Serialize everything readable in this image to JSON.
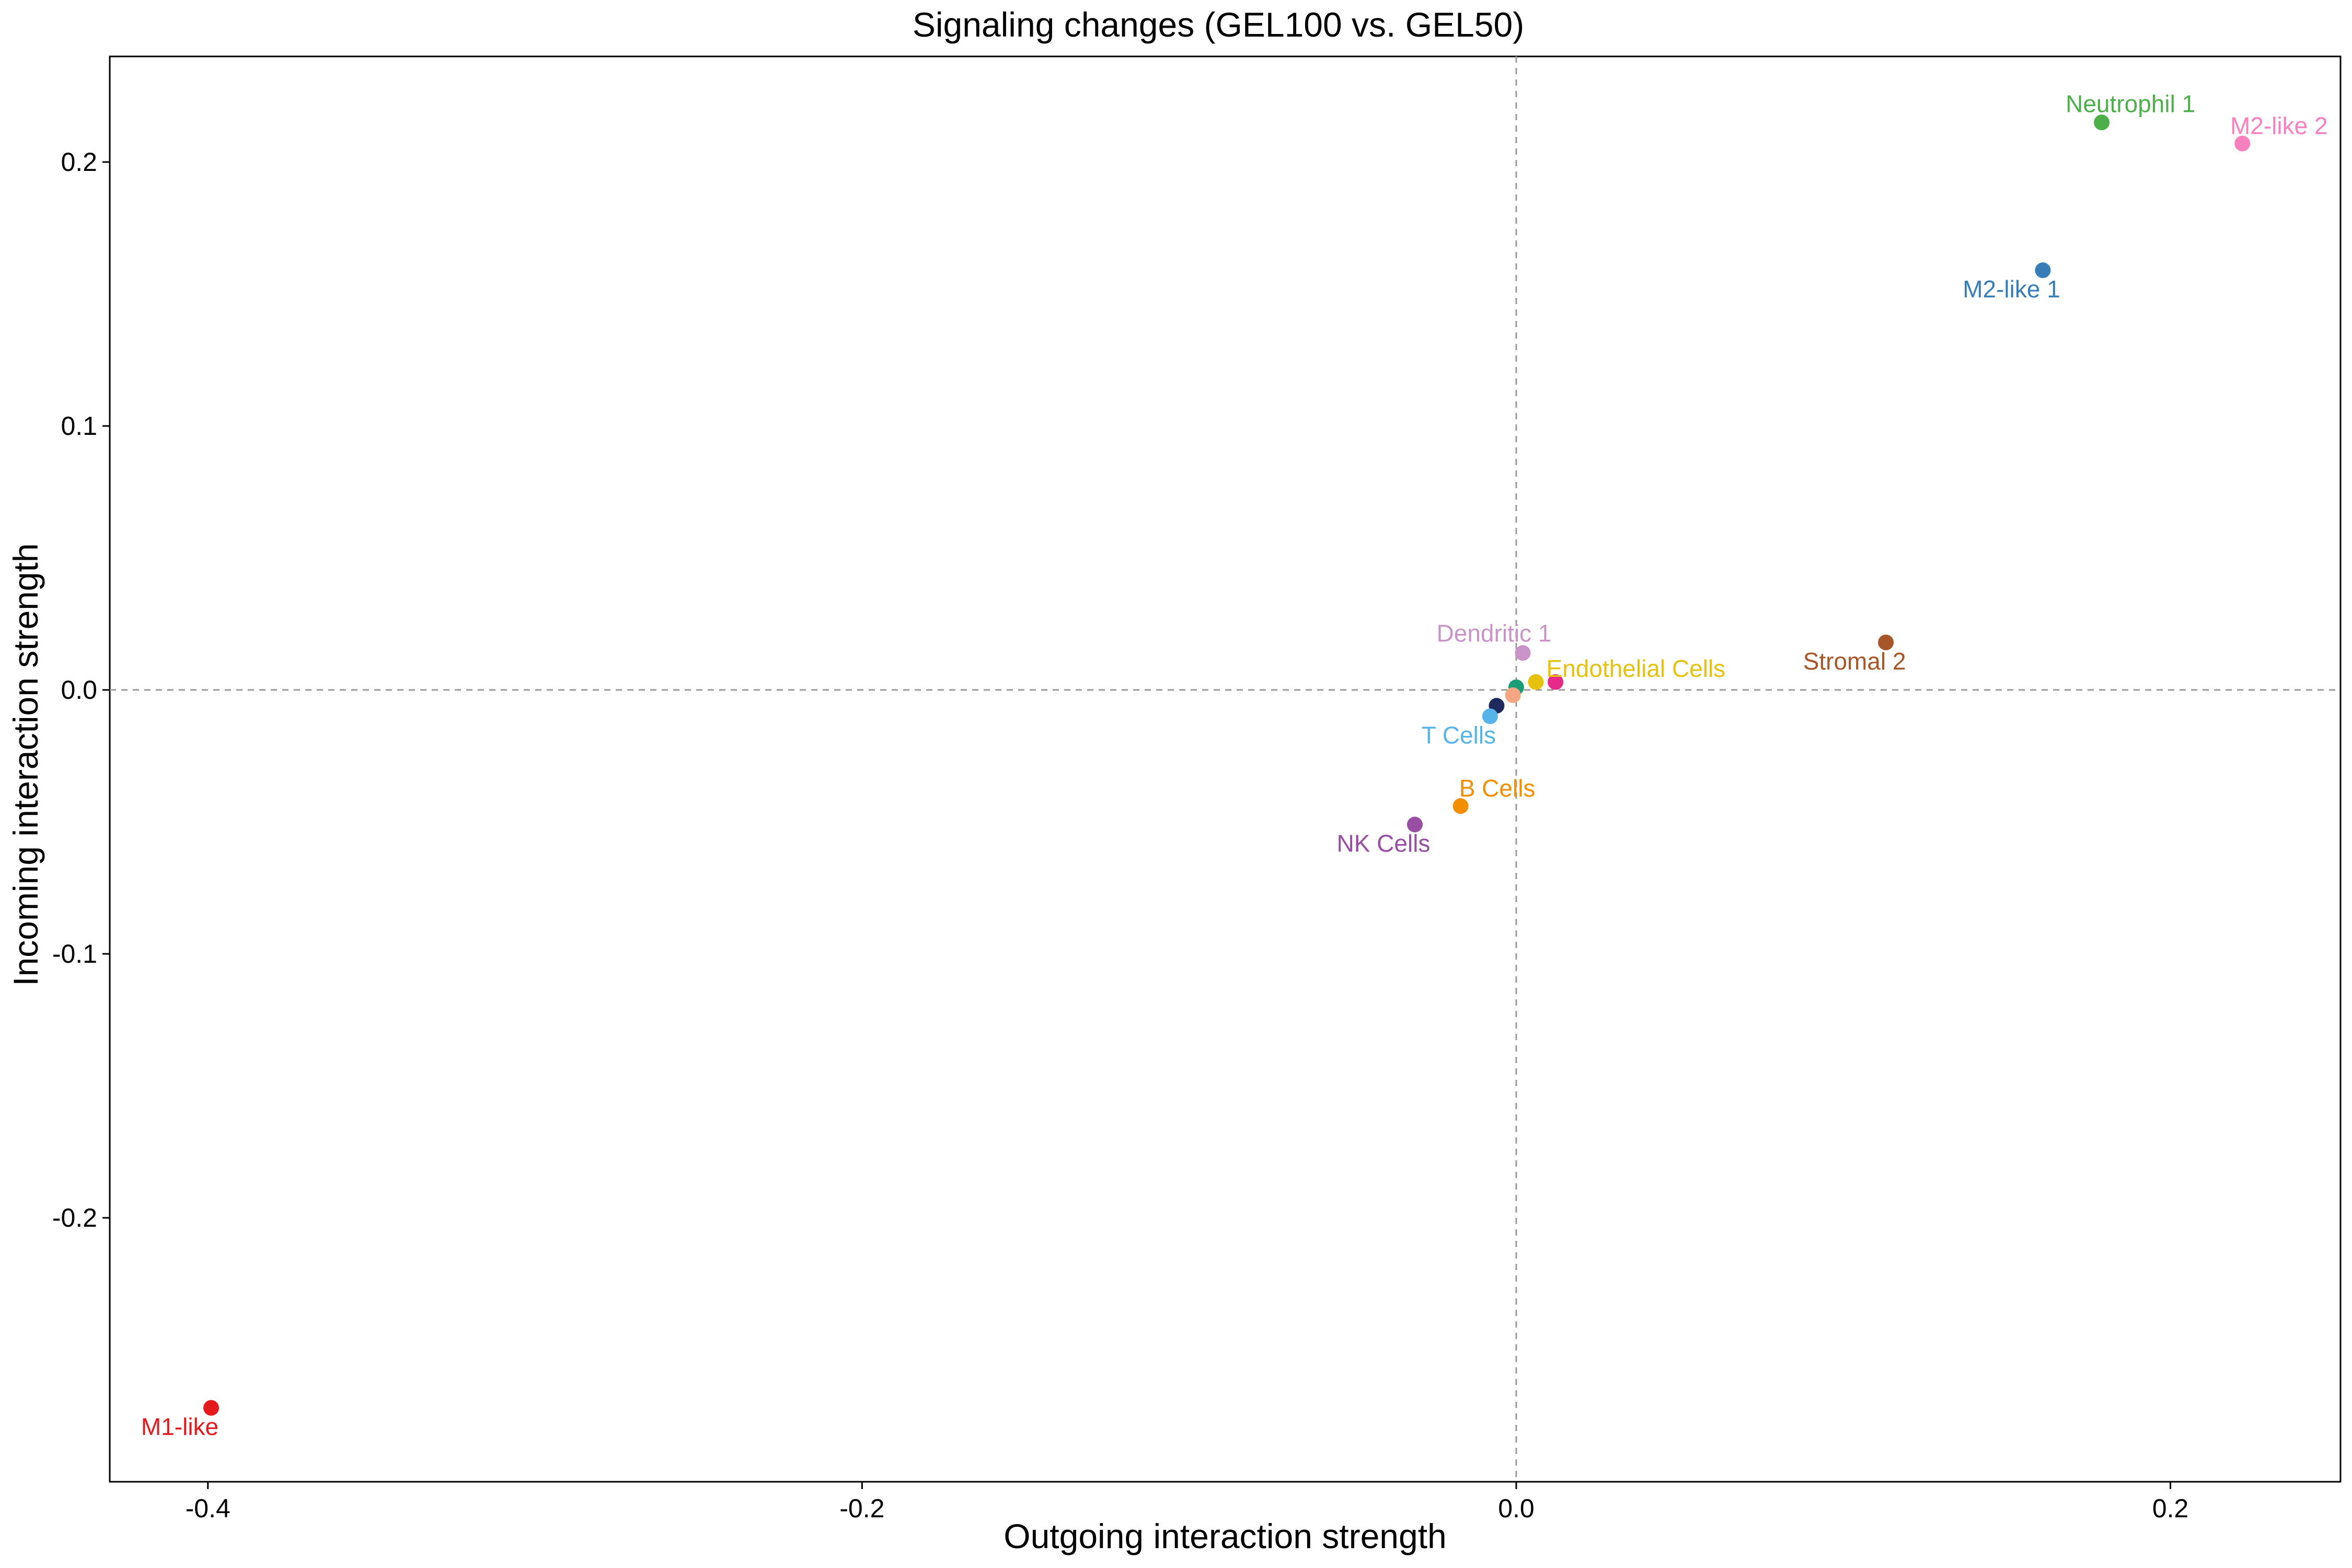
{
  "chart_data": {
    "type": "scatter",
    "title": "Signaling changes  (GEL100 vs. GEL50)",
    "xlabel": "Outgoing interaction strength",
    "ylabel": "Incoming interaction strength",
    "xlim": [
      -0.43,
      0.252
    ],
    "ylim": [
      -0.3,
      0.24
    ],
    "xticks": [
      -0.4,
      -0.2,
      0.0,
      0.2
    ],
    "xtick_labels": [
      "-0.4",
      "-0.2",
      "0.0",
      "0.2"
    ],
    "yticks": [
      -0.2,
      -0.1,
      0.0,
      0.1,
      0.2
    ],
    "ytick_labels": [
      "-0.2",
      "-0.1",
      "0.0",
      "0.1",
      "0.2"
    ],
    "reference_lines": {
      "x": 0,
      "y": 0,
      "style": "dashed"
    },
    "grid": false,
    "legend": "none",
    "points": [
      {
        "label": "Neutrophil 1",
        "x": 0.179,
        "y": 0.215,
        "color": "#4DAF4A",
        "label_pos": "above"
      },
      {
        "label": "M2-like 2",
        "x": 0.222,
        "y": 0.207,
        "color": "#F781BF",
        "label_pos": "above-right"
      },
      {
        "label": "M2-like 1",
        "x": 0.161,
        "y": 0.159,
        "color": "#377EB8",
        "label_pos": "below-left"
      },
      {
        "label": "Stromal 2",
        "x": 0.113,
        "y": 0.018,
        "color": "#A65628",
        "label_pos": "below-left"
      },
      {
        "label": "Dendritic 1",
        "x": 0.002,
        "y": 0.014,
        "color": "#C994C7",
        "label_pos": "above-left"
      },
      {
        "label": "Endothelial Cells",
        "x": 0.006,
        "y": 0.003,
        "color": "#E6C10E",
        "label_pos": "right"
      },
      {
        "label": "",
        "x": 0.012,
        "y": 0.003,
        "color": "#E7298A",
        "label_pos": "none"
      },
      {
        "label": "",
        "x": 0.0,
        "y": 0.001,
        "color": "#1B9E77",
        "label_pos": "none"
      },
      {
        "label": "",
        "x": -0.001,
        "y": -0.002,
        "color": "#F4A582",
        "label_pos": "none"
      },
      {
        "label": "",
        "x": -0.006,
        "y": -0.006,
        "color": "#1F2A5C",
        "label_pos": "none"
      },
      {
        "label": "T Cells",
        "x": -0.008,
        "y": -0.01,
        "color": "#56B4E9",
        "label_pos": "below-left"
      },
      {
        "label": "B Cells",
        "x": -0.017,
        "y": -0.044,
        "color": "#F28E00",
        "label_pos": "above-right"
      },
      {
        "label": "NK Cells",
        "x": -0.031,
        "y": -0.051,
        "color": "#984EA3",
        "label_pos": "below-left"
      },
      {
        "label": "M1-like",
        "x": -0.399,
        "y": -0.272,
        "color": "#E41A1C",
        "label_pos": "below-left"
      }
    ]
  }
}
